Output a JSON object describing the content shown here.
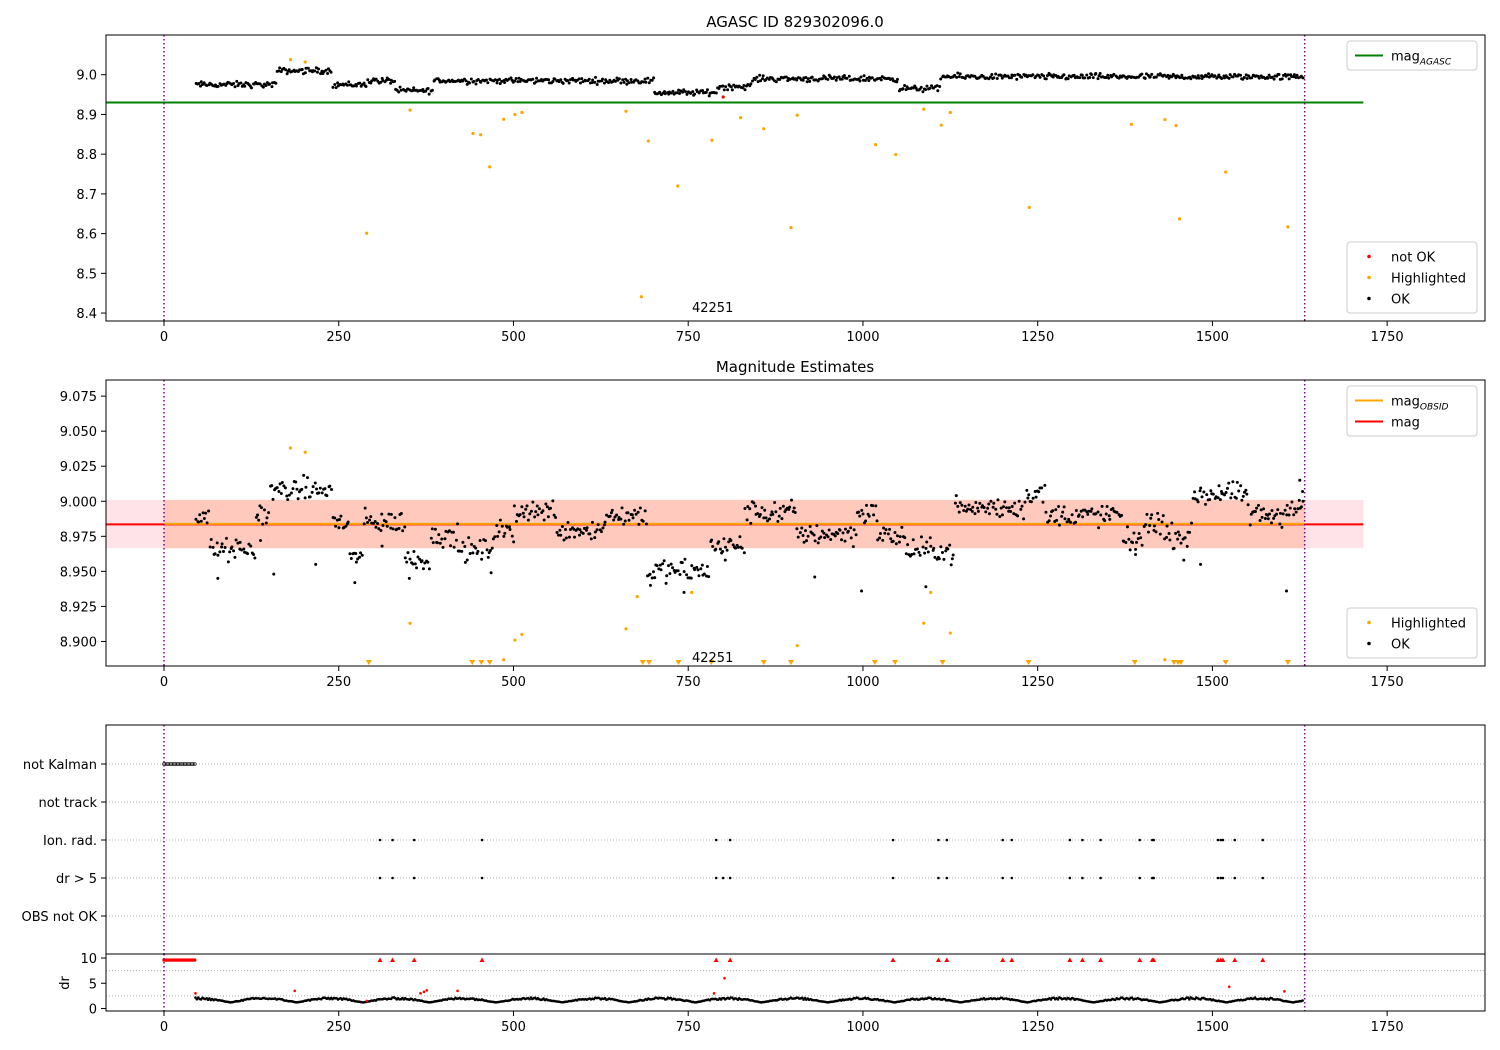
{
  "colors": {
    "ok": "#000000",
    "highlighted": "#ffa500",
    "not_ok": "#ff0000",
    "mag_agasc_line": "#008000",
    "mag_obsid_line": "#ffa500",
    "mag_line": "#ff0000",
    "range_band": "#ffc0cb",
    "obs_band": "#ffa07a",
    "boundary_line": "#800080",
    "grid": "#b0b0b0"
  },
  "chart_data": [
    {
      "id": "top",
      "type": "scatter",
      "title": "AGASC ID 829302096.0",
      "xlabel": "",
      "ylabel": "",
      "xlim": [
        -83,
        1890
      ],
      "ylim": [
        8.38,
        9.1
      ],
      "xticks": [
        0,
        250,
        500,
        750,
        1000,
        1250,
        1500,
        1750
      ],
      "yticks": [
        8.4,
        8.5,
        8.6,
        8.7,
        8.8,
        8.9,
        9.0
      ],
      "ytick_labels": [
        "8.4",
        "8.5",
        "8.6",
        "8.7",
        "8.8",
        "8.9",
        "9.0"
      ],
      "hlines": [
        {
          "name": "mag_agasc",
          "y": 8.93,
          "x_from": -83,
          "x_to": 1716,
          "color": "#008000"
        }
      ],
      "vlines": [
        0,
        1632
      ],
      "annotation": {
        "text": "42251",
        "x": 785,
        "y": 8.415
      },
      "ok_series": {
        "x_range": [
          45,
          1630
        ],
        "step": 2,
        "segments": [
          {
            "x0": 45,
            "x1": 160,
            "mean": 8.975
          },
          {
            "x0": 160,
            "x1": 240,
            "mean": 9.01
          },
          {
            "x0": 240,
            "x1": 290,
            "mean": 8.975
          },
          {
            "x0": 290,
            "x1": 330,
            "mean": 8.985
          },
          {
            "x0": 330,
            "x1": 385,
            "mean": 8.96
          },
          {
            "x0": 385,
            "x1": 700,
            "mean": 8.985
          },
          {
            "x0": 700,
            "x1": 790,
            "mean": 8.955
          },
          {
            "x0": 790,
            "x1": 840,
            "mean": 8.97
          },
          {
            "x0": 840,
            "x1": 1050,
            "mean": 8.99
          },
          {
            "x0": 1050,
            "x1": 1110,
            "mean": 8.965
          },
          {
            "x0": 1110,
            "x1": 1630,
            "mean": 8.995
          }
        ]
      },
      "highlighted_points": [
        [
          181,
          9.038
        ],
        [
          202,
          9.032
        ],
        [
          290,
          8.601
        ],
        [
          352,
          8.911
        ],
        [
          442,
          8.852
        ],
        [
          453,
          8.849
        ],
        [
          466,
          8.768
        ],
        [
          486,
          8.888
        ],
        [
          502,
          8.9
        ],
        [
          512,
          8.905
        ],
        [
          661,
          8.908
        ],
        [
          683,
          8.441
        ],
        [
          693,
          8.833
        ],
        [
          735,
          8.72
        ],
        [
          784,
          8.835
        ],
        [
          825,
          8.892
        ],
        [
          858,
          8.864
        ],
        [
          897,
          8.615
        ],
        [
          906,
          8.898
        ],
        [
          1018,
          8.824
        ],
        [
          1047,
          8.799
        ],
        [
          1087,
          8.913
        ],
        [
          1112,
          8.873
        ],
        [
          1125,
          8.905
        ],
        [
          1238,
          8.666
        ],
        [
          1384,
          8.875
        ],
        [
          1432,
          8.887
        ],
        [
          1448,
          8.872
        ],
        [
          1453,
          8.637
        ],
        [
          1519,
          8.755
        ],
        [
          1608,
          8.617
        ]
      ],
      "not_ok_points": [
        [
          800,
          8.944
        ]
      ],
      "legends": [
        {
          "position": "top-right",
          "entries": [
            {
              "label": "mag",
              "sub": "AGASC",
              "kind": "line",
              "color": "#008000"
            }
          ]
        },
        {
          "position": "bottom-right",
          "entries": [
            {
              "label": "not OK",
              "kind": "dot",
              "color": "#ff0000"
            },
            {
              "label": "Highlighted",
              "kind": "dot",
              "color": "#ffa500"
            },
            {
              "label": "OK",
              "kind": "dot",
              "color": "#000000"
            }
          ]
        }
      ]
    },
    {
      "id": "middle",
      "type": "scatter",
      "title": "Magnitude Estimates",
      "xlabel": "",
      "ylabel": "",
      "xlim": [
        -83,
        1890
      ],
      "ylim": [
        8.8825,
        9.0865
      ],
      "xticks": [
        0,
        250,
        500,
        750,
        1000,
        1250,
        1500,
        1750
      ],
      "yticks": [
        8.9,
        8.925,
        8.95,
        8.975,
        9.0,
        9.025,
        9.05,
        9.075
      ],
      "ytick_labels": [
        "8.900",
        "8.925",
        "8.950",
        "8.975",
        "9.000",
        "9.025",
        "9.050",
        "9.075"
      ],
      "bands": [
        {
          "name": "mag range",
          "y0": 8.9665,
          "y1": 9.001,
          "x0": -83,
          "x1": 1716,
          "color": "#ffc0cb"
        },
        {
          "name": "obsid range",
          "y0": 8.9665,
          "y1": 9.001,
          "x0": 0,
          "x1": 1632,
          "color": "#ffa07a"
        }
      ],
      "hlines": [
        {
          "name": "mag",
          "y": 8.9835,
          "x_from": -83,
          "x_to": 1716,
          "color": "#ff0000"
        },
        {
          "name": "mag_obsid",
          "y": 8.9839,
          "x_from": 0,
          "x_to": 1632,
          "color": "#ffa500"
        }
      ],
      "vlines": [
        0,
        1632
      ],
      "annotation": {
        "text": "42251",
        "x": 785,
        "y": 8.889
      },
      "highlighted_points": [
        [
          181,
          9.038
        ],
        [
          202,
          9.035
        ],
        [
          352,
          8.913
        ],
        [
          486,
          8.887
        ],
        [
          502,
          8.901
        ],
        [
          512,
          8.905
        ],
        [
          661,
          8.909
        ],
        [
          677,
          8.932
        ],
        [
          755,
          8.935
        ],
        [
          906,
          8.897
        ],
        [
          1087,
          8.913
        ],
        [
          1097,
          8.935
        ],
        [
          1125,
          8.906
        ],
        [
          1432,
          8.887
        ]
      ],
      "off_scale_x": [
        293,
        441,
        454,
        466,
        685,
        694,
        736,
        783,
        858,
        897,
        1017,
        1046,
        1114,
        1237,
        1389,
        1445,
        1451,
        1455,
        1519,
        1608
      ],
      "ok_points": [
        [
          77,
          8.945
        ],
        [
          138,
          8.972
        ],
        [
          157,
          8.948
        ],
        [
          217,
          8.955
        ],
        [
          273,
          8.942
        ],
        [
          312,
          8.968
        ],
        [
          351,
          8.945
        ],
        [
          468,
          8.949
        ],
        [
          696,
          8.94
        ],
        [
          744,
          8.935
        ],
        [
          803,
          8.958
        ],
        [
          931,
          8.946
        ],
        [
          998,
          8.936
        ],
        [
          1090,
          8.939
        ],
        [
          1108,
          8.96
        ],
        [
          1390,
          8.962
        ],
        [
          1459,
          8.958
        ],
        [
          1483,
          8.955
        ],
        [
          1513,
          9.007
        ],
        [
          1579,
          8.99
        ],
        [
          1606,
          8.936
        ],
        [
          1625,
          9.015
        ],
        [
          1629,
          9.007
        ]
      ],
      "ok_series": {
        "x_range": [
          45,
          1630
        ],
        "step": 2,
        "jitter": 0.012,
        "segments": [
          {
            "x0": 45,
            "x1": 65,
            "mean": 8.99
          },
          {
            "x0": 65,
            "x1": 130,
            "mean": 8.965
          },
          {
            "x0": 130,
            "x1": 150,
            "mean": 8.99
          },
          {
            "x0": 150,
            "x1": 240,
            "mean": 9.008
          },
          {
            "x0": 240,
            "x1": 265,
            "mean": 8.985
          },
          {
            "x0": 265,
            "x1": 285,
            "mean": 8.96
          },
          {
            "x0": 285,
            "x1": 310,
            "mean": 8.985
          },
          {
            "x0": 310,
            "x1": 345,
            "mean": 8.985
          },
          {
            "x0": 345,
            "x1": 380,
            "mean": 8.958
          },
          {
            "x0": 380,
            "x1": 420,
            "mean": 8.975
          },
          {
            "x0": 420,
            "x1": 470,
            "mean": 8.965
          },
          {
            "x0": 470,
            "x1": 500,
            "mean": 8.978
          },
          {
            "x0": 500,
            "x1": 560,
            "mean": 8.993
          },
          {
            "x0": 560,
            "x1": 630,
            "mean": 8.98
          },
          {
            "x0": 630,
            "x1": 690,
            "mean": 8.99
          },
          {
            "x0": 690,
            "x1": 780,
            "mean": 8.95
          },
          {
            "x0": 780,
            "x1": 830,
            "mean": 8.968
          },
          {
            "x0": 830,
            "x1": 905,
            "mean": 8.992
          },
          {
            "x0": 905,
            "x1": 990,
            "mean": 8.977
          },
          {
            "x0": 990,
            "x1": 1020,
            "mean": 8.992
          },
          {
            "x0": 1020,
            "x1": 1060,
            "mean": 8.975
          },
          {
            "x0": 1060,
            "x1": 1130,
            "mean": 8.965
          },
          {
            "x0": 1130,
            "x1": 1230,
            "mean": 8.995
          },
          {
            "x0": 1230,
            "x1": 1260,
            "mean": 9.005
          },
          {
            "x0": 1260,
            "x1": 1370,
            "mean": 8.99
          },
          {
            "x0": 1370,
            "x1": 1400,
            "mean": 8.972
          },
          {
            "x0": 1400,
            "x1": 1430,
            "mean": 8.985
          },
          {
            "x0": 1430,
            "x1": 1470,
            "mean": 8.975
          },
          {
            "x0": 1470,
            "x1": 1550,
            "mean": 9.005
          },
          {
            "x0": 1550,
            "x1": 1600,
            "mean": 8.99
          },
          {
            "x0": 1600,
            "x1": 1630,
            "mean": 8.995
          }
        ]
      },
      "legends": [
        {
          "position": "top-right",
          "entries": [
            {
              "label": "mag",
              "sub": "OBSID",
              "kind": "line",
              "color": "#ffa500"
            },
            {
              "label": "mag",
              "kind": "line",
              "color": "#ff0000"
            }
          ]
        },
        {
          "position": "bottom-right",
          "entries": [
            {
              "label": "Highlighted",
              "kind": "dot",
              "color": "#ffa500"
            },
            {
              "label": "OK",
              "kind": "dot",
              "color": "#000000"
            }
          ]
        }
      ]
    },
    {
      "id": "flags",
      "type": "scatter",
      "title": "",
      "xlim": [
        -83,
        1890
      ],
      "categories": [
        "not Kalman",
        "not track",
        "Ion. rad.",
        "dr > 5",
        "OBS not OK"
      ],
      "vlines": [
        0,
        1632
      ],
      "flag_series": {
        "not Kalman": {
          "x_range": [
            0,
            45
          ],
          "step": 2
        },
        "not track": {
          "points": []
        },
        "Ion. rad.": {
          "points": [
            309,
            327,
            358,
            455,
            790,
            810,
            1043,
            1108,
            1120,
            1200,
            1213,
            1296,
            1314,
            1340,
            1396,
            1414,
            1416,
            1508,
            1512,
            1515,
            1532,
            1572
          ]
        },
        "dr > 5": {
          "points": [
            309,
            327,
            358,
            455,
            790,
            800,
            810,
            1043,
            1108,
            1120,
            1200,
            1213,
            1296,
            1314,
            1340,
            1396,
            1414,
            1416,
            1508,
            1512,
            1515,
            1532,
            1572
          ]
        },
        "OBS not OK": {
          "points": []
        }
      }
    },
    {
      "id": "dr",
      "type": "scatter",
      "title": "",
      "ylabel": "dr",
      "xlim": [
        -83,
        1890
      ],
      "ylim": [
        -0.5,
        10.8
      ],
      "xticks": [
        0,
        250,
        500,
        750,
        1000,
        1250,
        1500,
        1750
      ],
      "yticks": [
        0,
        5,
        10
      ],
      "ytick_labels": [
        "0",
        "5",
        "10"
      ],
      "vlines": [
        0,
        1632
      ],
      "capped_value": 10,
      "capped_red_x": [
        309,
        327,
        358,
        455,
        790,
        810,
        1043,
        1108,
        1120,
        1200,
        1213,
        1296,
        1314,
        1340,
        1396,
        1414,
        1416,
        1508,
        1512,
        1515,
        1532,
        1572
      ],
      "capped_red_range": {
        "x_range": [
          0,
          45
        ],
        "step": 2
      },
      "red_points": [
        [
          45,
          3.0
        ],
        [
          187,
          3.5
        ],
        [
          290,
          1.5
        ],
        [
          367,
          3.0
        ],
        [
          372,
          3.3
        ],
        [
          376,
          3.6
        ],
        [
          420,
          3.5
        ],
        [
          787,
          3.0
        ],
        [
          802,
          6.0
        ],
        [
          1524,
          4.3
        ],
        [
          1603,
          3.4
        ]
      ],
      "ok_series": {
        "x_range": [
          45,
          1630
        ],
        "step": 2,
        "base": 1.2,
        "amplitude": 1.0,
        "period": 95
      }
    }
  ],
  "dr_yaxis_label": "dr"
}
